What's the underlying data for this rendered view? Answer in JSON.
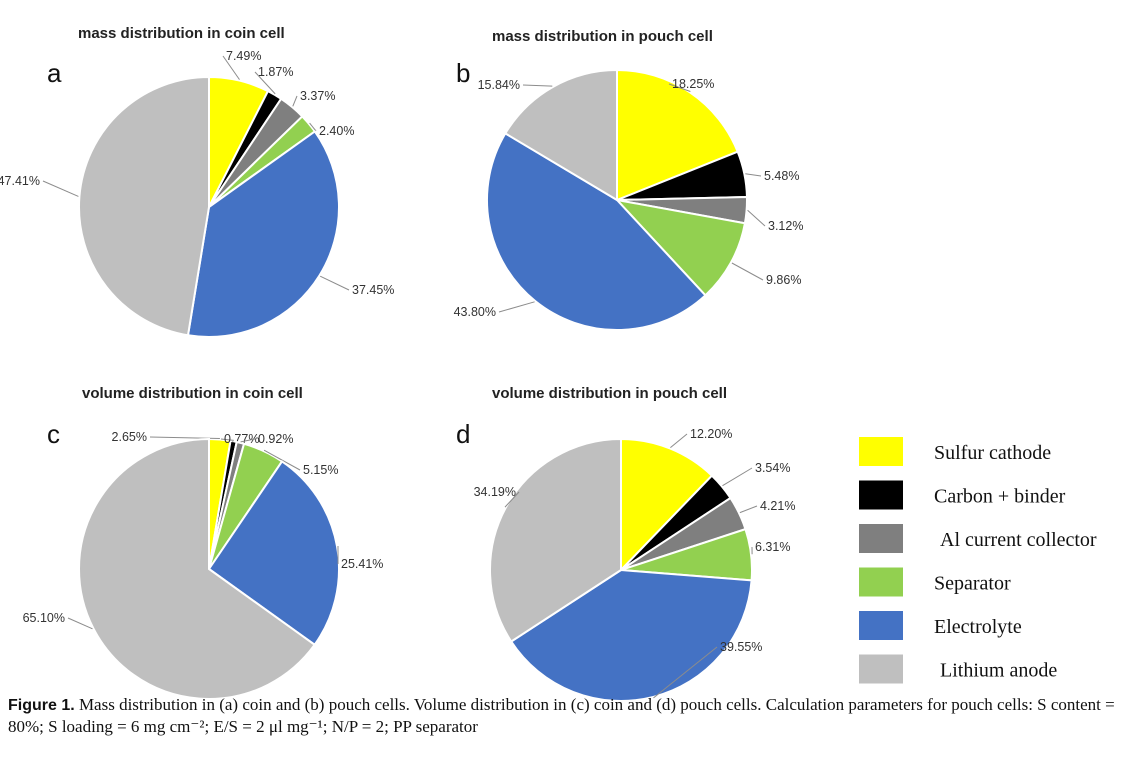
{
  "colors": {
    "sulfur_cathode": "#ffff00",
    "carbon_binder": "#000000",
    "al_current_collector": "#7f7f7f",
    "separator": "#92d050",
    "electrolyte": "#4472c4",
    "lithium_anode": "#bfbfbf"
  },
  "legend": [
    {
      "label": "Sulfur cathode",
      "color": "#ffff00"
    },
    {
      "label": "Carbon + binder",
      "color": "#000000"
    },
    {
      "label": "Al current collector",
      "color": "#7f7f7f"
    },
    {
      "label": "Separator",
      "color": "#92d050"
    },
    {
      "label": "Electrolyte",
      "color": "#4472c4"
    },
    {
      "label": "Lithium anode",
      "color": "#bfbfbf"
    }
  ],
  "chart_data": [
    {
      "type": "pie",
      "panel": "a",
      "title": "mass distribution in coin cell",
      "categories": [
        "Sulfur cathode",
        "Carbon + binder",
        "Al current collector",
        "Separator",
        "Electrolyte",
        "Lithium anode"
      ],
      "values": [
        7.49,
        1.87,
        3.37,
        2.4,
        37.45,
        47.41
      ],
      "labels": [
        "7.49%",
        "1.87%",
        "3.37%",
        "2.40%",
        "37.45%",
        "47.41%"
      ]
    },
    {
      "type": "pie",
      "panel": "b",
      "title": "mass distribution in pouch cell",
      "categories": [
        "Sulfur cathode",
        "Carbon + binder",
        "Al current collector",
        "Separator",
        "Electrolyte",
        "Lithium anode"
      ],
      "values": [
        18.25,
        5.48,
        3.12,
        9.86,
        43.8,
        15.84
      ],
      "labels": [
        "18.25%",
        "5.48%",
        "3.12%",
        "9.86%",
        "43.80%",
        "15.84%"
      ]
    },
    {
      "type": "pie",
      "panel": "c",
      "title": "volume distribution in coin cell",
      "categories": [
        "Sulfur cathode",
        "Carbon + binder",
        "Al current collector",
        "Separator",
        "Electrolyte",
        "Lithium anode"
      ],
      "values": [
        2.65,
        0.77,
        0.92,
        5.15,
        25.41,
        65.1
      ],
      "labels": [
        "2.65%",
        "0.77%",
        "0.92%",
        "5.15%",
        "25.41%",
        "65.10%"
      ]
    },
    {
      "type": "pie",
      "panel": "d",
      "title": "volume distribution in pouch cell",
      "categories": [
        "Sulfur cathode",
        "Carbon + binder",
        "Al current collector",
        "Separator",
        "Electrolyte",
        "Lithium anode"
      ],
      "values": [
        12.2,
        3.54,
        4.21,
        6.31,
        39.55,
        34.19
      ],
      "labels": [
        "12.20%",
        "3.54%",
        "4.21%",
        "6.31%",
        "39.55%",
        "34.19%"
      ]
    }
  ],
  "caption": {
    "label": "Figure 1.",
    "text": "Mass distribution in (a) coin and (b) pouch cells. Volume distribution in (c) coin and (d) pouch cells. Calculation parameters for pouch cells: S content = 80%; S loading = 6 mg cm⁻²; E/S = 2 μl mg⁻¹; N/P = 2; PP separator"
  }
}
